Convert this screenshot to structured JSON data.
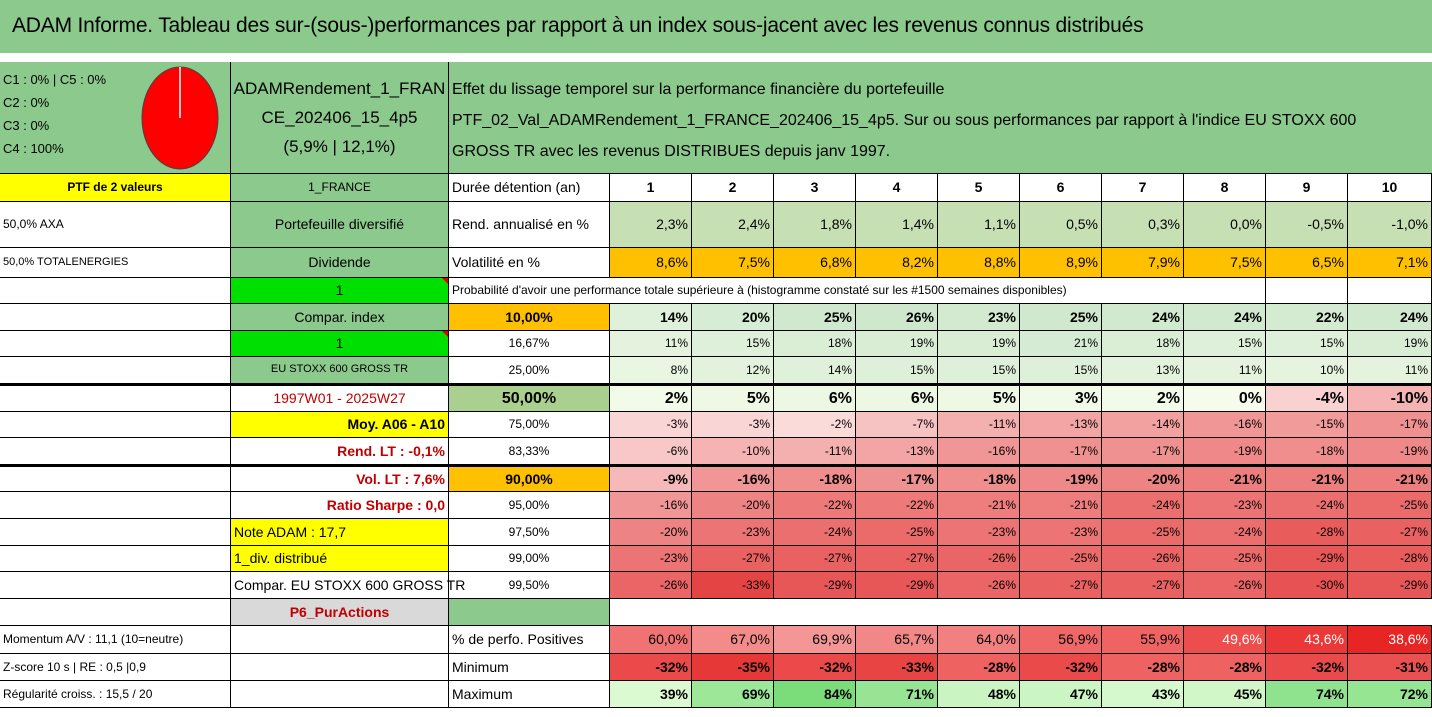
{
  "title": "ADAM Informe. Tableau des sur-(sous-)performances par rapport à un index sous-jacent avec les revenus connus distribués",
  "composition": [
    "C1 : 0% | C5 : 0%",
    "C2 : 0%",
    "C3 : 0%",
    "C4 : 100%"
  ],
  "pie": {
    "slices": [
      {
        "label": "C4",
        "value": 100,
        "color": "#ff0000"
      }
    ]
  },
  "portfolio_name": [
    "ADAMRendement_1_FRAN",
    "CE_202406_15_4p5",
    "(5,9% | 12,1%)"
  ],
  "description": [
    "Effet du lissage temporel sur la performance financière du portefeuille",
    "PTF_02_Val_ADAMRendement_1_FRANCE_202406_15_4p5. Sur ou sous performances par rapport à l'indice EU STOXX 600",
    "GROSS TR avec les revenus DISTRIBUES depuis janv 1997."
  ],
  "col_a": [
    "PTF de 2 valeurs",
    "50,0% AXA",
    "50,0% TOTALENERGIES",
    "",
    "",
    "",
    "",
    "",
    "",
    "",
    "",
    "",
    "",
    "",
    "",
    "",
    "Momentum A/V : 11,1 (10=neutre)",
    "Z-score 10 s | RE : 0,5 |0,9",
    "Régularité croiss. : 15,5 / 20"
  ],
  "col_b": [
    "1_FRANCE",
    "Portefeuille diversifié",
    "Dividende",
    "1",
    "Compar. index",
    "1",
    "EU STOXX 600 GROSS TR",
    "1997W01 - 2025W27",
    "Moy. A06 - A10",
    "Rend. LT : -0,1%",
    "Vol. LT : 7,6%",
    "Ratio Sharpe : 0,0",
    "Note ADAM : 17,7",
    "1_div. distribué",
    "Compar. EU STOXX 600 GROSS TR",
    "P6_PurActions"
  ],
  "header_label": "Durée détention (an)",
  "years": [
    "1",
    "2",
    "3",
    "4",
    "5",
    "6",
    "7",
    "8",
    "9",
    "10"
  ],
  "rend_label": "Rend. annualisé en %",
  "rend": [
    "2,3%",
    "2,4%",
    "1,8%",
    "1,4%",
    "1,1%",
    "0,5%",
    "0,3%",
    "0,0%",
    "-0,5%",
    "-1,0%"
  ],
  "vol_label": "Volatilité en %",
  "vol": [
    "8,6%",
    "7,5%",
    "6,8%",
    "8,2%",
    "8,8%",
    "8,9%",
    "7,9%",
    "7,5%",
    "6,5%",
    "7,1%"
  ],
  "prob_text": "Probabilité d'avoir une performance totale supérieure à (histogramme constaté sur les #1500 semaines disponibles)",
  "quantiles": [
    {
      "label": "10,00%",
      "values": [
        "14%",
        "20%",
        "25%",
        "26%",
        "23%",
        "25%",
        "24%",
        "24%",
        "22%",
        "24%"
      ]
    },
    {
      "label": "16,67%",
      "values": [
        "11%",
        "15%",
        "18%",
        "19%",
        "19%",
        "21%",
        "18%",
        "15%",
        "15%",
        "19%"
      ]
    },
    {
      "label": "25,00%",
      "values": [
        "8%",
        "12%",
        "14%",
        "15%",
        "15%",
        "15%",
        "13%",
        "11%",
        "10%",
        "11%"
      ]
    },
    {
      "label": "50,00%",
      "values": [
        "2%",
        "5%",
        "6%",
        "6%",
        "5%",
        "3%",
        "2%",
        "0%",
        "-4%",
        "-10%"
      ]
    },
    {
      "label": "75,00%",
      "values": [
        "-3%",
        "-3%",
        "-2%",
        "-7%",
        "-11%",
        "-13%",
        "-14%",
        "-16%",
        "-15%",
        "-17%"
      ]
    },
    {
      "label": "83,33%",
      "values": [
        "-6%",
        "-10%",
        "-11%",
        "-13%",
        "-16%",
        "-17%",
        "-17%",
        "-19%",
        "-18%",
        "-19%"
      ]
    },
    {
      "label": "90,00%",
      "values": [
        "-9%",
        "-16%",
        "-18%",
        "-17%",
        "-18%",
        "-19%",
        "-20%",
        "-21%",
        "-21%",
        "-21%"
      ]
    },
    {
      "label": "95,00%",
      "values": [
        "-16%",
        "-20%",
        "-22%",
        "-22%",
        "-21%",
        "-21%",
        "-24%",
        "-23%",
        "-24%",
        "-25%"
      ]
    },
    {
      "label": "97,50%",
      "values": [
        "-20%",
        "-23%",
        "-24%",
        "-25%",
        "-23%",
        "-23%",
        "-25%",
        "-24%",
        "-28%",
        "-27%"
      ]
    },
    {
      "label": "99,00%",
      "values": [
        "-23%",
        "-27%",
        "-27%",
        "-27%",
        "-26%",
        "-25%",
        "-26%",
        "-25%",
        "-29%",
        "-28%"
      ]
    },
    {
      "label": "99,50%",
      "values": [
        "-26%",
        "-33%",
        "-29%",
        "-29%",
        "-26%",
        "-27%",
        "-27%",
        "-26%",
        "-30%",
        "-29%"
      ]
    }
  ],
  "pos_label": "% de perfo. Positives",
  "pos": [
    "60,0%",
    "67,0%",
    "69,9%",
    "65,7%",
    "64,0%",
    "56,9%",
    "55,9%",
    "49,6%",
    "43,6%",
    "38,6%"
  ],
  "min_label": "Minimum",
  "min": [
    "-32%",
    "-35%",
    "-32%",
    "-33%",
    "-28%",
    "-32%",
    "-28%",
    "-28%",
    "-32%",
    "-31%"
  ],
  "max_label": "Maximum",
  "max": [
    "39%",
    "69%",
    "84%",
    "71%",
    "48%",
    "47%",
    "43%",
    "45%",
    "74%",
    "72%"
  ]
}
